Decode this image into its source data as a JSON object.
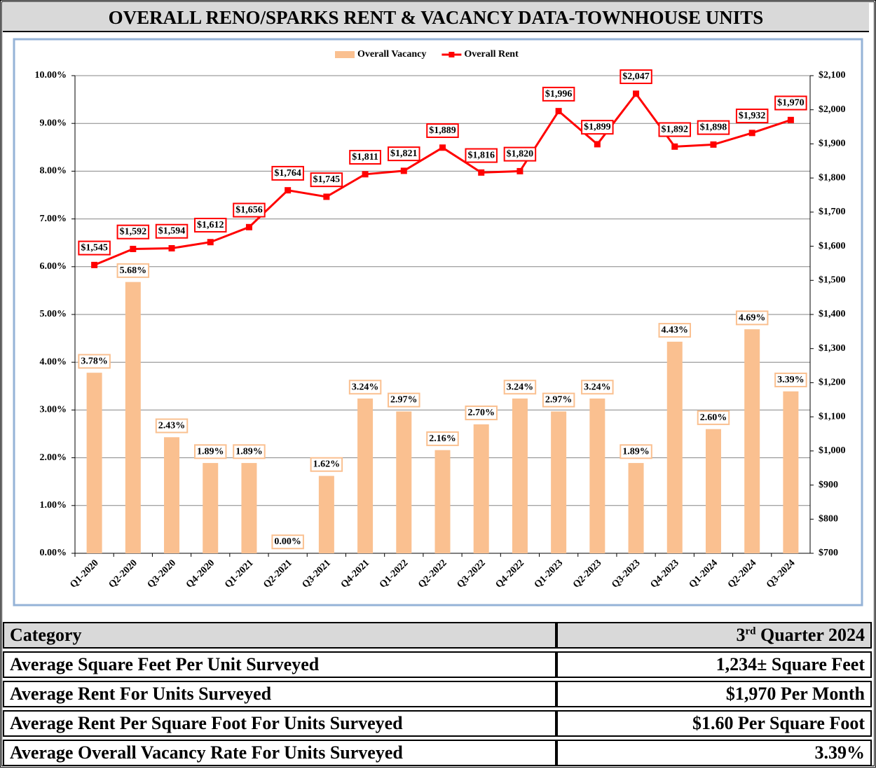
{
  "title": "OVERALL RENO/SPARKS RENT & VACANCY DATA-TOWNHOUSE UNITS",
  "chart_data": {
    "type": "bar",
    "categories": [
      "Q1-2020",
      "Q2-2020",
      "Q3-2020",
      "Q4-2020",
      "Q1-2021",
      "Q2-2021",
      "Q3-2021",
      "Q4-2021",
      "Q1-2022",
      "Q2-2022",
      "Q3-2022",
      "Q4-2022",
      "Q1-2023",
      "Q2-2023",
      "Q3-2023",
      "Q4-2023",
      "Q1-2024",
      "Q2-2024",
      "Q3-2024"
    ],
    "series": [
      {
        "name": "Overall Vacancy",
        "type": "bar",
        "color": "#fac090",
        "values": [
          3.78,
          5.68,
          2.43,
          1.89,
          1.89,
          0.0,
          1.62,
          3.24,
          2.97,
          2.16,
          2.7,
          3.24,
          2.97,
          3.24,
          1.89,
          4.43,
          2.6,
          4.69,
          3.39
        ],
        "value_labels": [
          "3.78%",
          "5.68%",
          "2.43%",
          "1.89%",
          "1.89%",
          "0.00%",
          "1.62%",
          "3.24%",
          "2.97%",
          "2.16%",
          "2.70%",
          "3.24%",
          "2.97%",
          "3.24%",
          "1.89%",
          "4.43%",
          "2.60%",
          "4.69%",
          "3.39%"
        ]
      },
      {
        "name": "Overall Rent",
        "type": "line",
        "axis": "y2",
        "color": "#ff0000",
        "values": [
          1545,
          1592,
          1594,
          1612,
          1656,
          1764,
          1745,
          1811,
          1821,
          1889,
          1816,
          1820,
          1996,
          1899,
          2047,
          1892,
          1898,
          1932,
          1970
        ],
        "value_labels": [
          "$1,545",
          "$1,592",
          "$1,594",
          "$1,612",
          "$1,656",
          "$1,764",
          "$1,745",
          "$1,811",
          "$1,821",
          "$1,889",
          "$1,816",
          "$1,820",
          "$1,996",
          "$1,899",
          "$2,047",
          "$1,892",
          "$1,898",
          "$1,932",
          "$1,970"
        ]
      }
    ],
    "ylim": [
      0,
      10
    ],
    "yticks": [
      {
        "value": 0,
        "label": "0.00%"
      },
      {
        "value": 1,
        "label": "1.00%"
      },
      {
        "value": 2,
        "label": "2.00%"
      },
      {
        "value": 3,
        "label": "3.00%"
      },
      {
        "value": 4,
        "label": "4.00%"
      },
      {
        "value": 5,
        "label": "5.00%"
      },
      {
        "value": 6,
        "label": "6.00%"
      },
      {
        "value": 7,
        "label": "7.00%"
      },
      {
        "value": 8,
        "label": "8.00%"
      },
      {
        "value": 9,
        "label": "9.00%"
      },
      {
        "value": 10,
        "label": "10.00%"
      }
    ],
    "y2lim": [
      700,
      2100
    ],
    "y2ticks": [
      {
        "value": 700,
        "label": "$700"
      },
      {
        "value": 800,
        "label": "$800"
      },
      {
        "value": 900,
        "label": "$900"
      },
      {
        "value": 1000,
        "label": "$1,000"
      },
      {
        "value": 1100,
        "label": "$1,100"
      },
      {
        "value": 1200,
        "label": "$1,200"
      },
      {
        "value": 1300,
        "label": "$1,300"
      },
      {
        "value": 1400,
        "label": "$1,400"
      },
      {
        "value": 1500,
        "label": "$1,500"
      },
      {
        "value": 1600,
        "label": "$1,600"
      },
      {
        "value": 1700,
        "label": "$1,700"
      },
      {
        "value": 1800,
        "label": "$1,800"
      },
      {
        "value": 1900,
        "label": "$1,900"
      },
      {
        "value": 2000,
        "label": "$2,000"
      },
      {
        "value": 2100,
        "label": "$2,100"
      }
    ],
    "grid": true,
    "legend": "top"
  },
  "table": {
    "header": [
      "Category",
      "3rd Quarter 2024"
    ],
    "rows": [
      [
        "Average Square Feet Per Unit Surveyed",
        "1,234± Square Feet"
      ],
      [
        "Average Rent For Units Surveyed",
        "$1,970 Per Month"
      ],
      [
        "Average Rent Per Square Foot For Units Surveyed",
        "$1.60 Per Square Foot"
      ],
      [
        "Average Overall Vacancy Rate For Units Surveyed",
        "3.39%"
      ]
    ]
  }
}
